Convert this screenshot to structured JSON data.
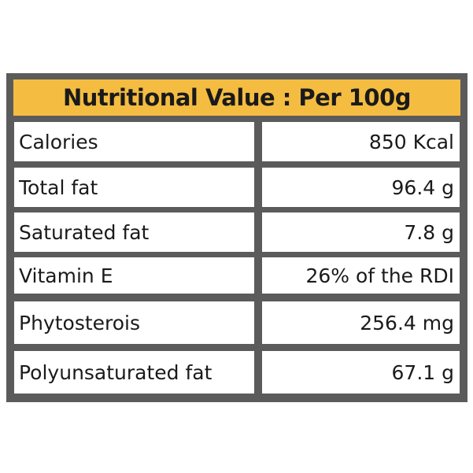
{
  "header": {
    "title": "Nutritional Value : Per 100g"
  },
  "table": {
    "rows": [
      [
        "Calories",
        "850 Kcal"
      ],
      [
        "Total fat",
        "96.4 g"
      ],
      [
        "Saturated fat",
        "7.8 g"
      ],
      [
        "Vitamin E",
        "26% of the RDI"
      ],
      [
        "Phytosterois",
        "256.4 mg"
      ],
      [
        "Polyunsaturated fat",
        "67.1 g"
      ]
    ]
  }
}
